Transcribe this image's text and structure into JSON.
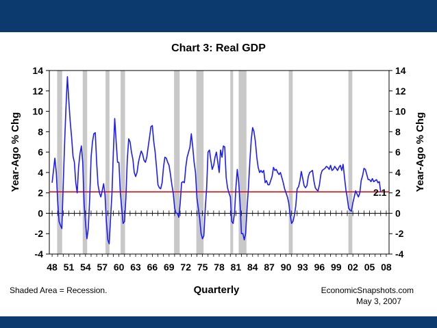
{
  "colors": {
    "band": "#0d3a6e",
    "series": "#1a1aff",
    "refline": "#e01010",
    "recession": "#c8c8c8",
    "reflabel": "#e01010"
  },
  "chart_data": {
    "type": "line",
    "title": "Chart 3: Real GDP",
    "xlabel": "Quarterly",
    "ylabel_left": "Year-Ago % Chg",
    "ylabel_right": "Year-Ago % Chg",
    "ylim": [
      -4,
      14
    ],
    "xlim": [
      1947.5,
      2008.5
    ],
    "y_ticks": [
      14,
      12,
      10,
      8,
      6,
      4,
      2,
      0,
      -2,
      -4
    ],
    "y_tick_labels": [
      "14",
      "12",
      "10",
      "8",
      "6",
      "4",
      "2",
      "0",
      "-2",
      "-4"
    ],
    "x_tick_years": [
      1948,
      1951,
      1954,
      1957,
      1960,
      1963,
      1966,
      1969,
      1972,
      1975,
      1978,
      1981,
      1984,
      1987,
      1990,
      1993,
      1996,
      1999,
      2002,
      2005,
      2008
    ],
    "x_tick_labels": [
      "48",
      "51",
      "54",
      "57",
      "60",
      "63",
      "66",
      "69",
      "72",
      "75",
      "78",
      "81",
      "84",
      "87",
      "90",
      "93",
      "96",
      "99",
      "02",
      "05",
      "08"
    ],
    "recessions": [
      [
        1948.9,
        1949.8
      ],
      [
        1953.5,
        1954.3
      ],
      [
        1957.6,
        1958.3
      ],
      [
        1960.3,
        1961.1
      ],
      [
        1969.9,
        1970.9
      ],
      [
        1973.9,
        1975.2
      ],
      [
        1980.0,
        1980.5
      ],
      [
        1981.5,
        1982.9
      ],
      [
        1990.5,
        1991.2
      ],
      [
        2001.2,
        2001.9
      ]
    ],
    "reference_line": {
      "value": 2.1,
      "label": "2.1"
    },
    "series": [
      {
        "name": "Real GDP",
        "points": [
          [
            1948.0,
            3.0
          ],
          [
            1948.25,
            4.2
          ],
          [
            1948.5,
            5.4
          ],
          [
            1948.75,
            4.0
          ],
          [
            1949.0,
            1.2
          ],
          [
            1949.25,
            -0.8
          ],
          [
            1949.5,
            -1.2
          ],
          [
            1949.75,
            -1.5
          ],
          [
            1950.0,
            2.8
          ],
          [
            1950.25,
            7.0
          ],
          [
            1950.5,
            10.5
          ],
          [
            1950.75,
            13.4
          ],
          [
            1951.0,
            11.0
          ],
          [
            1951.25,
            9.0
          ],
          [
            1951.5,
            7.5
          ],
          [
            1951.75,
            5.6
          ],
          [
            1952.0,
            5.0
          ],
          [
            1952.25,
            3.0
          ],
          [
            1952.5,
            2.0
          ],
          [
            1952.75,
            4.5
          ],
          [
            1953.0,
            5.8
          ],
          [
            1953.25,
            6.6
          ],
          [
            1953.5,
            5.0
          ],
          [
            1953.75,
            1.0
          ],
          [
            1954.0,
            -1.0
          ],
          [
            1954.25,
            -2.5
          ],
          [
            1954.5,
            -1.5
          ],
          [
            1954.75,
            1.5
          ],
          [
            1955.0,
            5.5
          ],
          [
            1955.25,
            7.0
          ],
          [
            1955.5,
            7.8
          ],
          [
            1955.75,
            7.9
          ],
          [
            1956.0,
            5.0
          ],
          [
            1956.25,
            2.8
          ],
          [
            1956.5,
            2.0
          ],
          [
            1956.75,
            1.6
          ],
          [
            1957.0,
            2.2
          ],
          [
            1957.25,
            2.9
          ],
          [
            1957.5,
            1.8
          ],
          [
            1957.75,
            -0.8
          ],
          [
            1958.0,
            -2.6
          ],
          [
            1958.25,
            -3.0
          ],
          [
            1958.5,
            -0.5
          ],
          [
            1958.75,
            2.0
          ],
          [
            1959.0,
            6.0
          ],
          [
            1959.25,
            9.3
          ],
          [
            1959.5,
            7.0
          ],
          [
            1959.75,
            5.0
          ],
          [
            1960.0,
            5.0
          ],
          [
            1960.25,
            2.0
          ],
          [
            1960.5,
            0.5
          ],
          [
            1960.75,
            -1.0
          ],
          [
            1961.0,
            -0.8
          ],
          [
            1961.25,
            1.5
          ],
          [
            1961.5,
            5.2
          ],
          [
            1961.75,
            7.3
          ],
          [
            1962.0,
            7.0
          ],
          [
            1962.25,
            6.0
          ],
          [
            1962.5,
            5.3
          ],
          [
            1962.75,
            4.0
          ],
          [
            1963.0,
            3.6
          ],
          [
            1963.25,
            4.0
          ],
          [
            1963.5,
            5.0
          ],
          [
            1963.75,
            5.6
          ],
          [
            1964.0,
            6.1
          ],
          [
            1964.25,
            5.8
          ],
          [
            1964.5,
            5.2
          ],
          [
            1964.75,
            5.0
          ],
          [
            1965.0,
            5.5
          ],
          [
            1965.25,
            6.5
          ],
          [
            1965.5,
            7.5
          ],
          [
            1965.75,
            8.5
          ],
          [
            1966.0,
            8.6
          ],
          [
            1966.25,
            7.0
          ],
          [
            1966.5,
            6.0
          ],
          [
            1966.75,
            4.5
          ],
          [
            1967.0,
            2.8
          ],
          [
            1967.25,
            2.5
          ],
          [
            1967.5,
            2.4
          ],
          [
            1967.75,
            3.0
          ],
          [
            1968.0,
            4.5
          ],
          [
            1968.25,
            5.5
          ],
          [
            1968.5,
            5.4
          ],
          [
            1968.75,
            5.0
          ],
          [
            1969.0,
            4.7
          ],
          [
            1969.25,
            3.8
          ],
          [
            1969.5,
            2.8
          ],
          [
            1969.75,
            2.0
          ],
          [
            1970.0,
            0.5
          ],
          [
            1970.25,
            0.0
          ],
          [
            1970.5,
            0.0
          ],
          [
            1970.75,
            -0.4
          ],
          [
            1971.0,
            1.0
          ],
          [
            1971.25,
            3.0
          ],
          [
            1971.5,
            3.1
          ],
          [
            1971.75,
            3.0
          ],
          [
            1972.0,
            4.5
          ],
          [
            1972.25,
            5.5
          ],
          [
            1972.5,
            6.0
          ],
          [
            1972.75,
            6.5
          ],
          [
            1973.0,
            7.8
          ],
          [
            1973.25,
            6.5
          ],
          [
            1973.5,
            5.0
          ],
          [
            1973.75,
            4.0
          ],
          [
            1974.0,
            1.5
          ],
          [
            1974.25,
            0.5
          ],
          [
            1974.5,
            -0.5
          ],
          [
            1974.75,
            -2.0
          ],
          [
            1975.0,
            -2.5
          ],
          [
            1975.25,
            -2.2
          ],
          [
            1975.5,
            0.5
          ],
          [
            1975.75,
            2.5
          ],
          [
            1976.0,
            6.0
          ],
          [
            1976.25,
            6.2
          ],
          [
            1976.5,
            5.2
          ],
          [
            1976.75,
            4.3
          ],
          [
            1977.0,
            4.7
          ],
          [
            1977.25,
            5.5
          ],
          [
            1977.5,
            6.0
          ],
          [
            1977.75,
            5.0
          ],
          [
            1978.0,
            4.0
          ],
          [
            1978.25,
            6.2
          ],
          [
            1978.5,
            5.5
          ],
          [
            1978.75,
            6.6
          ],
          [
            1979.0,
            6.5
          ],
          [
            1979.25,
            3.5
          ],
          [
            1979.5,
            2.5
          ],
          [
            1979.75,
            2.0
          ],
          [
            1980.0,
            1.6
          ],
          [
            1980.25,
            -0.8
          ],
          [
            1980.5,
            -1.0
          ],
          [
            1980.75,
            0.0
          ],
          [
            1981.0,
            2.5
          ],
          [
            1981.25,
            4.3
          ],
          [
            1981.5,
            3.0
          ],
          [
            1981.75,
            1.0
          ],
          [
            1982.0,
            -2.0
          ],
          [
            1982.25,
            -2.0
          ],
          [
            1982.5,
            -2.6
          ],
          [
            1982.75,
            -2.0
          ],
          [
            1983.0,
            0.5
          ],
          [
            1983.25,
            2.5
          ],
          [
            1983.5,
            5.0
          ],
          [
            1983.75,
            7.2
          ],
          [
            1984.0,
            8.4
          ],
          [
            1984.25,
            8.0
          ],
          [
            1984.5,
            7.0
          ],
          [
            1984.75,
            5.5
          ],
          [
            1985.0,
            4.5
          ],
          [
            1985.25,
            4.0
          ],
          [
            1985.5,
            4.2
          ],
          [
            1985.75,
            4.0
          ],
          [
            1986.0,
            4.2
          ],
          [
            1986.25,
            3.0
          ],
          [
            1986.5,
            3.2
          ],
          [
            1986.75,
            2.8
          ],
          [
            1987.0,
            2.8
          ],
          [
            1987.25,
            3.2
          ],
          [
            1987.5,
            3.6
          ],
          [
            1987.75,
            4.5
          ],
          [
            1988.0,
            4.2
          ],
          [
            1988.25,
            4.3
          ],
          [
            1988.5,
            4.0
          ],
          [
            1988.75,
            3.8
          ],
          [
            1989.0,
            4.0
          ],
          [
            1989.25,
            3.5
          ],
          [
            1989.5,
            3.0
          ],
          [
            1989.75,
            2.4
          ],
          [
            1990.0,
            2.0
          ],
          [
            1990.25,
            1.6
          ],
          [
            1990.5,
            1.0
          ],
          [
            1990.75,
            -0.2
          ],
          [
            1991.0,
            -1.0
          ],
          [
            1991.25,
            -0.8
          ],
          [
            1991.5,
            -0.2
          ],
          [
            1991.75,
            0.7
          ],
          [
            1992.0,
            2.4
          ],
          [
            1992.25,
            2.6
          ],
          [
            1992.5,
            3.2
          ],
          [
            1992.75,
            4.1
          ],
          [
            1993.0,
            3.4
          ],
          [
            1993.25,
            2.7
          ],
          [
            1993.5,
            2.5
          ],
          [
            1993.75,
            2.7
          ],
          [
            1994.0,
            3.6
          ],
          [
            1994.25,
            4.0
          ],
          [
            1994.5,
            4.1
          ],
          [
            1994.75,
            4.2
          ],
          [
            1995.0,
            3.2
          ],
          [
            1995.25,
            2.5
          ],
          [
            1995.5,
            2.3
          ],
          [
            1995.75,
            2.2
          ],
          [
            1996.0,
            2.8
          ],
          [
            1996.25,
            3.8
          ],
          [
            1996.5,
            4.2
          ],
          [
            1996.75,
            4.3
          ],
          [
            1997.0,
            4.4
          ],
          [
            1997.25,
            4.6
          ],
          [
            1997.5,
            4.5
          ],
          [
            1997.75,
            4.3
          ],
          [
            1998.0,
            4.7
          ],
          [
            1998.25,
            4.2
          ],
          [
            1998.5,
            4.3
          ],
          [
            1998.75,
            4.6
          ],
          [
            1999.0,
            4.4
          ],
          [
            1999.25,
            4.2
          ],
          [
            1999.5,
            4.5
          ],
          [
            1999.75,
            4.7
          ],
          [
            2000.0,
            4.2
          ],
          [
            2000.25,
            4.8
          ],
          [
            2000.5,
            3.5
          ],
          [
            2000.75,
            2.3
          ],
          [
            2001.0,
            1.5
          ],
          [
            2001.25,
            0.5
          ],
          [
            2001.5,
            0.3
          ],
          [
            2001.75,
            0.2
          ],
          [
            2002.0,
            1.0
          ],
          [
            2002.25,
            1.6
          ],
          [
            2002.5,
            2.2
          ],
          [
            2002.75,
            1.9
          ],
          [
            2003.0,
            1.6
          ],
          [
            2003.25,
            2.0
          ],
          [
            2003.5,
            3.2
          ],
          [
            2003.75,
            3.7
          ],
          [
            2004.0,
            4.4
          ],
          [
            2004.25,
            4.3
          ],
          [
            2004.5,
            3.8
          ],
          [
            2004.75,
            3.3
          ],
          [
            2005.0,
            3.3
          ],
          [
            2005.25,
            3.1
          ],
          [
            2005.5,
            3.4
          ],
          [
            2005.75,
            3.1
          ],
          [
            2006.0,
            3.2
          ],
          [
            2006.25,
            3.3
          ],
          [
            2006.5,
            3.0
          ],
          [
            2006.75,
            3.1
          ],
          [
            2007.0,
            2.1
          ]
        ]
      }
    ]
  },
  "notes": {
    "recession_note": "Shaded Area = Recession.",
    "source": "EconomicSnapshots.com",
    "date": "May 3, 2007"
  }
}
